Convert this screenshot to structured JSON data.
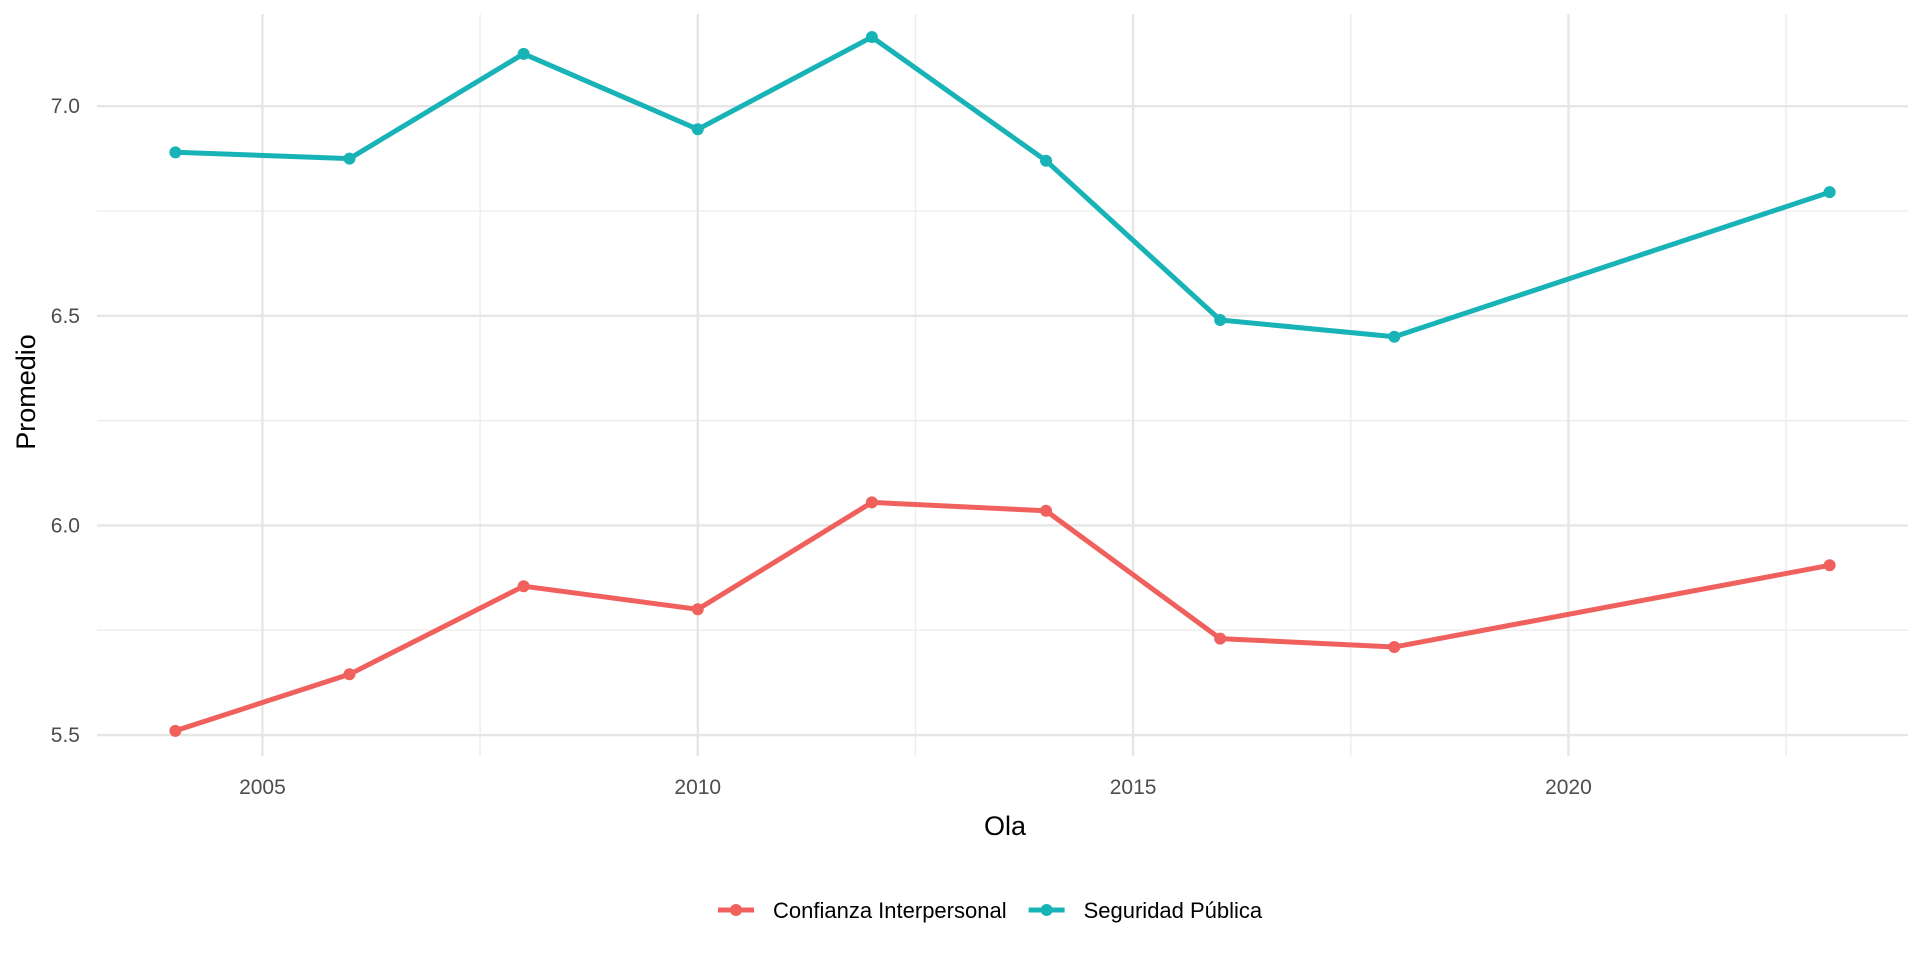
{
  "chart_data": {
    "type": "line",
    "xlabel": "Ola",
    "ylabel": "Promedio",
    "xlim": [
      2003.1,
      2023.9
    ],
    "ylim": [
      5.45,
      7.22
    ],
    "x_ticks": [
      2005,
      2010,
      2015,
      2020
    ],
    "x_minor_ticks": [
      2007.5,
      2012.5,
      2017.5,
      2022.5
    ],
    "y_ticks": [
      5.5,
      6.0,
      6.5,
      7.0
    ],
    "y_tick_labels": [
      "5.5",
      "6.0",
      "6.5",
      "7.0"
    ],
    "y_minor_ticks": [
      5.75,
      6.25,
      6.75
    ],
    "grid": true,
    "legend_position": "bottom",
    "series": [
      {
        "name": "Confianza Interpersonal",
        "color": "#F0605D",
        "x": [
          2004,
          2006,
          2008,
          2010,
          2012,
          2014,
          2016,
          2018,
          2023
        ],
        "y": [
          5.51,
          5.645,
          5.855,
          5.8,
          6.055,
          6.035,
          5.73,
          5.71,
          5.905
        ]
      },
      {
        "name": "Seguridad Pública",
        "color": "#17B3B7",
        "x": [
          2004,
          2006,
          2008,
          2010,
          2012,
          2014,
          2016,
          2018,
          2023
        ],
        "y": [
          6.89,
          6.875,
          7.125,
          6.945,
          7.165,
          6.87,
          6.49,
          6.45,
          6.795
        ]
      }
    ]
  }
}
